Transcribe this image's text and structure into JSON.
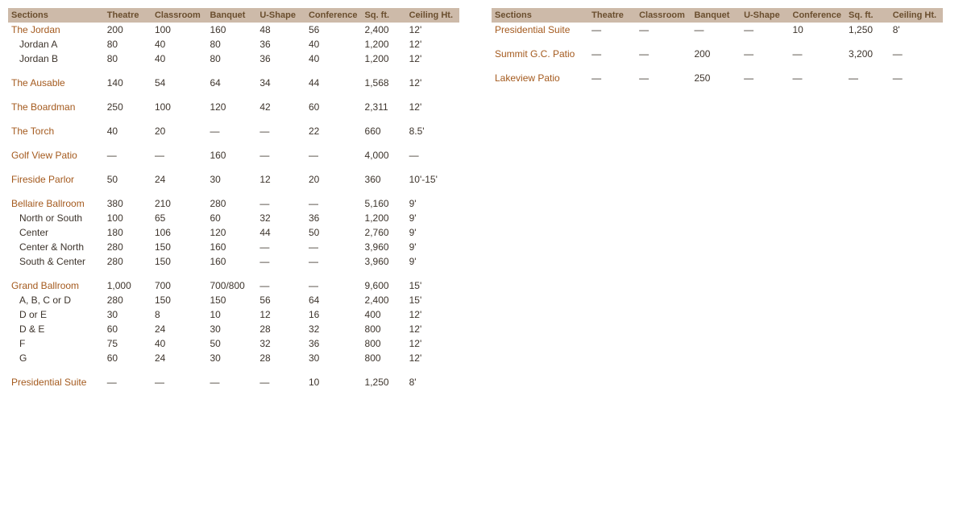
{
  "headers": {
    "sections": "Sections",
    "theatre": "Theatre",
    "classroom": "Classroom",
    "banquet": "Banquet",
    "ushape": "U-Shape",
    "conference": "Conference",
    "sqft": "Sq. ft.",
    "ceil": "Ceiling Ht."
  },
  "style": {
    "header_bg": "#cdbaa9",
    "header_text": "#6a4e2e",
    "group_text": "#a45a1e",
    "body_text": "#3d342c",
    "font_family": "Arial",
    "font_size_header": 11,
    "font_size_body": 12,
    "dash": "—"
  },
  "left": [
    {
      "type": "group",
      "name": "The Jordan",
      "theatre": "200",
      "classroom": "100",
      "banquet": "160",
      "ushape": "48",
      "conference": "56",
      "sqft": "2,400",
      "ceil": "12'"
    },
    {
      "type": "sub",
      "name": "Jordan A",
      "theatre": "80",
      "classroom": "40",
      "banquet": "80",
      "ushape": "36",
      "conference": "40",
      "sqft": "1,200",
      "ceil": "12'"
    },
    {
      "type": "sub",
      "name": "Jordan B",
      "theatre": "80",
      "classroom": "40",
      "banquet": "80",
      "ushape": "36",
      "conference": "40",
      "sqft": "1,200",
      "ceil": "12'"
    },
    {
      "type": "spacer"
    },
    {
      "type": "group",
      "name": "The Ausable",
      "theatre": "140",
      "classroom": "54",
      "banquet": "64",
      "ushape": "34",
      "conference": "44",
      "sqft": "1,568",
      "ceil": "12'"
    },
    {
      "type": "spacer"
    },
    {
      "type": "group",
      "name": "The Boardman",
      "theatre": "250",
      "classroom": "100",
      "banquet": "120",
      "ushape": "42",
      "conference": "60",
      "sqft": "2,311",
      "ceil": "12'"
    },
    {
      "type": "spacer"
    },
    {
      "type": "group",
      "name": "The Torch",
      "theatre": "40",
      "classroom": "20",
      "banquet": "—",
      "ushape": "—",
      "conference": "22",
      "sqft": "660",
      "ceil": "8.5'"
    },
    {
      "type": "spacer"
    },
    {
      "type": "group",
      "name": "Golf View Patio",
      "theatre": "—",
      "classroom": "—",
      "banquet": "160",
      "ushape": "—",
      "conference": "—",
      "sqft": "4,000",
      "ceil": "—"
    },
    {
      "type": "spacer"
    },
    {
      "type": "group",
      "name": "Fireside Parlor",
      "theatre": "50",
      "classroom": "24",
      "banquet": "30",
      "ushape": "12",
      "conference": "20",
      "sqft": "360",
      "ceil": "10'-15'"
    },
    {
      "type": "spacer"
    },
    {
      "type": "group",
      "name": "Bellaire Ballroom",
      "theatre": "380",
      "classroom": "210",
      "banquet": "280",
      "ushape": "—",
      "conference": "—",
      "sqft": "5,160",
      "ceil": "9'"
    },
    {
      "type": "sub",
      "name": "North or South",
      "theatre": "100",
      "classroom": "65",
      "banquet": "60",
      "ushape": "32",
      "conference": "36",
      "sqft": "1,200",
      "ceil": "9'"
    },
    {
      "type": "sub",
      "name": "Center",
      "theatre": "180",
      "classroom": "106",
      "banquet": "120",
      "ushape": "44",
      "conference": "50",
      "sqft": "2,760",
      "ceil": "9'"
    },
    {
      "type": "sub",
      "name": "Center & North",
      "theatre": "280",
      "classroom": "150",
      "banquet": "160",
      "ushape": "—",
      "conference": "—",
      "sqft": "3,960",
      "ceil": "9'"
    },
    {
      "type": "sub",
      "name": "South & Center",
      "theatre": "280",
      "classroom": "150",
      "banquet": "160",
      "ushape": "—",
      "conference": "—",
      "sqft": "3,960",
      "ceil": "9'"
    },
    {
      "type": "spacer"
    },
    {
      "type": "group",
      "name": "Grand Ballroom",
      "theatre": "1,000",
      "classroom": "700",
      "banquet": "700/800",
      "ushape": "—",
      "conference": "—",
      "sqft": "9,600",
      "ceil": "15'"
    },
    {
      "type": "sub",
      "name": "A, B, C or D",
      "theatre": "280",
      "classroom": "150",
      "banquet": "150",
      "ushape": "56",
      "conference": "64",
      "sqft": "2,400",
      "ceil": "15'"
    },
    {
      "type": "sub",
      "name": "D or E",
      "theatre": "30",
      "classroom": "8",
      "banquet": "10",
      "ushape": "12",
      "conference": "16",
      "sqft": "400",
      "ceil": "12'"
    },
    {
      "type": "sub",
      "name": "D & E",
      "theatre": "60",
      "classroom": "24",
      "banquet": "30",
      "ushape": "28",
      "conference": "32",
      "sqft": "800",
      "ceil": "12'"
    },
    {
      "type": "sub",
      "name": "F",
      "theatre": "75",
      "classroom": "40",
      "banquet": "50",
      "ushape": "32",
      "conference": "36",
      "sqft": "800",
      "ceil": "12'"
    },
    {
      "type": "sub",
      "name": "G",
      "theatre": "60",
      "classroom": "24",
      "banquet": "30",
      "ushape": "28",
      "conference": "30",
      "sqft": "800",
      "ceil": "12'"
    },
    {
      "type": "spacer"
    },
    {
      "type": "group",
      "name": "Presidential Suite",
      "theatre": "—",
      "classroom": "—",
      "banquet": "—",
      "ushape": "—",
      "conference": "10",
      "sqft": "1,250",
      "ceil": "8'"
    }
  ],
  "right": [
    {
      "type": "group",
      "name": "Presidential Suite",
      "theatre": "—",
      "classroom": "—",
      "banquet": "—",
      "ushape": "—",
      "conference": "10",
      "sqft": "1,250",
      "ceil": "8'"
    },
    {
      "type": "spacer"
    },
    {
      "type": "group",
      "name": "Summit G.C. Patio",
      "theatre": "—",
      "classroom": "—",
      "banquet": "200",
      "ushape": "—",
      "conference": "—",
      "sqft": "3,200",
      "ceil": "—"
    },
    {
      "type": "spacer"
    },
    {
      "type": "group",
      "name": "Lakeview Patio",
      "theatre": "—",
      "classroom": "—",
      "banquet": "250",
      "ushape": "—",
      "conference": "—",
      "sqft": "—",
      "ceil": "—"
    }
  ]
}
